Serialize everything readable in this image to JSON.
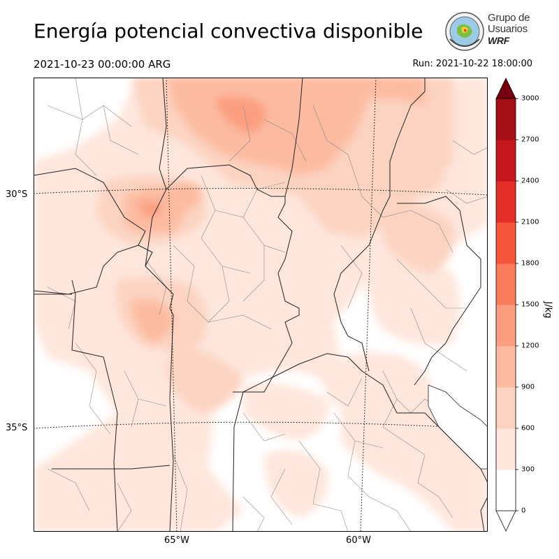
{
  "header": {
    "title": "Energía potencial convectiva disponible",
    "valid_time": "2021-10-23 00:00:00 ARG",
    "run_time": "Run: 2021-10-22 18:00:00"
  },
  "logo": {
    "line1": "Grupo de",
    "line2": "Usuarios",
    "line3": "WRF"
  },
  "map": {
    "lat_labels": [
      "30°S",
      "35°S"
    ],
    "lon_labels": [
      "65°W",
      "60°W"
    ],
    "field_colors": [
      "#fee6dc",
      "#fcd3c1",
      "#fcbba1",
      "#fc9f81",
      "#fb7c5c",
      "#f5553d",
      "#e32f27",
      "#c4161c",
      "#a30f15",
      "#75010e"
    ]
  },
  "colorbar": {
    "unit": "J/kg",
    "ticks": [
      "0",
      "300",
      "600",
      "900",
      "1200",
      "1500",
      "1800",
      "2100",
      "2400",
      "2700",
      "3000"
    ]
  }
}
